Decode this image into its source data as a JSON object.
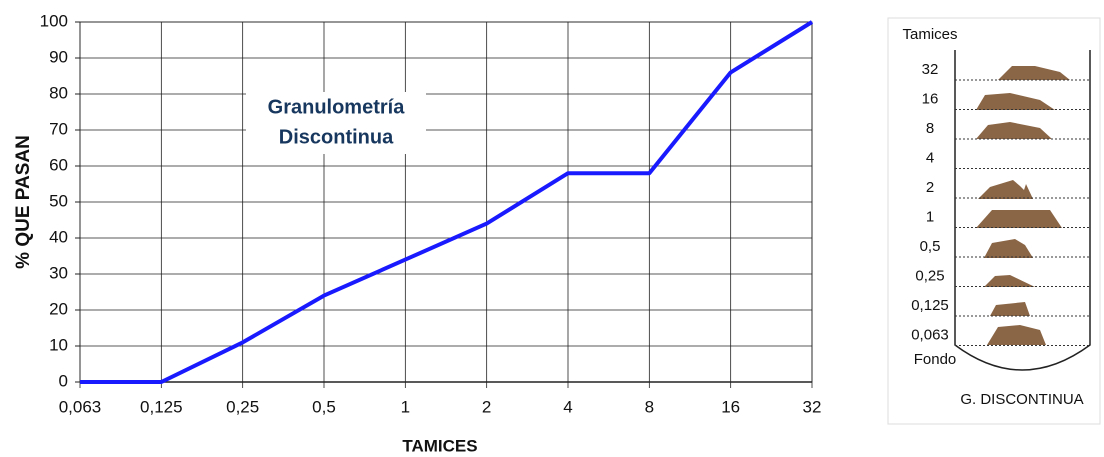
{
  "chart_data": {
    "type": "line",
    "annotation": [
      "Granulometría",
      "Discontinua"
    ],
    "xlabel": "TAMICES",
    "ylabel": "% QUE PASAN",
    "categories": [
      "0,063",
      "0,125",
      "0,25",
      "0,5",
      "1",
      "2",
      "4",
      "8",
      "16",
      "32"
    ],
    "series": [
      {
        "color": "#1a1aff",
        "values": [
          0,
          0,
          11,
          24,
          34,
          44,
          58,
          58,
          86,
          100
        ]
      }
    ],
    "ylim": [
      0,
      100
    ],
    "yticks": [
      0,
      10,
      20,
      30,
      40,
      50,
      60,
      70,
      80,
      90,
      100
    ],
    "grid": true
  },
  "diagram": {
    "title": "Tamices",
    "sieves": [
      "32",
      "16",
      "8",
      "4",
      "2",
      "1",
      "0,5",
      "0,25",
      "0,125",
      "0,063"
    ],
    "bottom": "Fondo",
    "caption": "G. DISCONTINUA"
  }
}
